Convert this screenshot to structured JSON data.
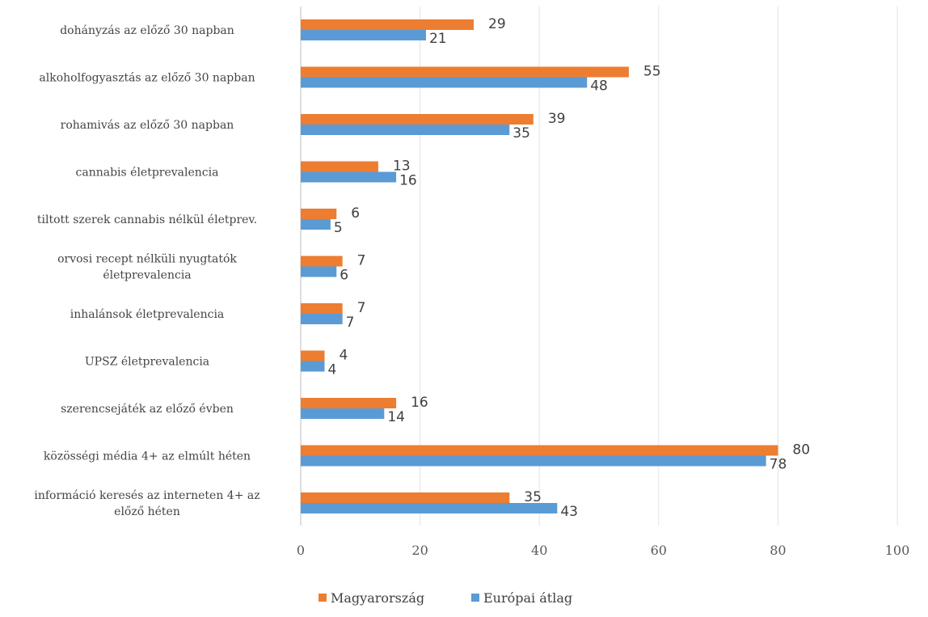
{
  "chart_data": {
    "type": "bar",
    "orientation": "horizontal",
    "categories": [
      "dohányzás az előző 30 napban",
      "alkoholfogyasztás az előző 30 napban",
      "rohamivás az előző 30 napban",
      "cannabis életprevalencia",
      "tiltott szerek cannabis nélkül életprev.",
      "orvosi recept nélküli nyugtatók életprevalencia",
      "inhalánsok életprevalencia",
      "UPSZ életprevalencia",
      "szerencsejáték az előző évben",
      "közösségi média 4+ az elmúlt héten",
      "információ keresés az interneten 4+ az előző héten"
    ],
    "category_lines": [
      [
        "dohányzás az előző 30 napban"
      ],
      [
        "alkoholfogyasztás az előző 30 napban"
      ],
      [
        "rohamivás az előző 30 napban"
      ],
      [
        "cannabis életprevalencia"
      ],
      [
        "tiltott szerek cannabis nélkül életprev."
      ],
      [
        "orvosi recept nélküli nyugtatók",
        "életprevalencia"
      ],
      [
        "inhalánsok életprevalencia"
      ],
      [
        "UPSZ életprevalencia"
      ],
      [
        "szerencsejáték az előző évben"
      ],
      [
        "közösségi média 4+ az elmúlt héten"
      ],
      [
        "információ keresés az interneten 4+ az",
        "előző héten"
      ]
    ],
    "series": [
      {
        "name": "Magyarország",
        "color": "#ED7D31",
        "values": [
          29,
          55,
          39,
          13,
          6,
          7,
          7,
          4,
          16,
          80,
          35
        ]
      },
      {
        "name": "Európai átlag",
        "color": "#5B9BD5",
        "values": [
          21,
          48,
          35,
          16,
          5,
          6,
          7,
          4,
          14,
          78,
          43
        ]
      }
    ],
    "xlim": [
      0,
      100
    ],
    "xticks": [
      0,
      20,
      40,
      60,
      80,
      100
    ],
    "xtick_labels": [
      "0",
      "20",
      "40",
      "60",
      "80",
      "100"
    ],
    "grid": true,
    "legend_position": "bottom",
    "title": "",
    "xlabel": "",
    "ylabel": ""
  }
}
